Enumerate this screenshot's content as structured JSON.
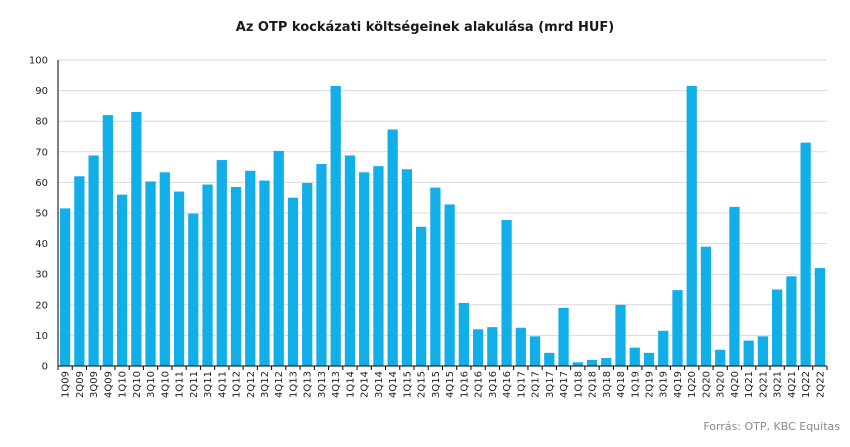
{
  "chart_data": {
    "type": "bar",
    "title": "Az OTP kockázati költségeinek alakulása (mrd HUF)",
    "xlabel": "",
    "ylabel": "",
    "ylim": [
      0,
      100
    ],
    "yticks": [
      0,
      10,
      20,
      30,
      40,
      50,
      60,
      70,
      80,
      90,
      100
    ],
    "grid": true,
    "color": "#12aee8",
    "categories": [
      "1Q09",
      "2Q09",
      "3Q09",
      "4Q09",
      "1Q10",
      "2Q10",
      "3Q10",
      "4Q10",
      "1Q11",
      "2Q11",
      "3Q11",
      "4Q11",
      "1Q12",
      "2Q12",
      "3Q12",
      "4Q12",
      "1Q13",
      "2Q13",
      "3Q13",
      "4Q13",
      "1Q14",
      "2Q14",
      "3Q14",
      "4Q14",
      "1Q15",
      "2Q15",
      "3Q15",
      "4Q15",
      "1Q16",
      "2Q16",
      "3Q16",
      "4Q16",
      "1Q17",
      "2Q17",
      "3Q17",
      "4Q17",
      "1Q18",
      "2Q18",
      "3Q18",
      "4Q18",
      "1Q19",
      "2Q19",
      "3Q19",
      "4Q19",
      "1Q20",
      "2Q20",
      "3Q20",
      "4Q20",
      "1Q21",
      "2Q21",
      "3Q21",
      "4Q21",
      "1Q22",
      "2Q22"
    ],
    "values": [
      51.5,
      62,
      68.8,
      82,
      56,
      83,
      60.3,
      63.3,
      57,
      49.8,
      59.3,
      67.3,
      58.5,
      63.8,
      60.6,
      70.3,
      55,
      59.8,
      66,
      91.5,
      68.8,
      63.3,
      65.3,
      77.3,
      64.3,
      45.5,
      58.3,
      52.8,
      20.6,
      12,
      12.7,
      47.7,
      12.5,
      9.7,
      4.3,
      19,
      1.2,
      2,
      2.6,
      20,
      6,
      4.3,
      11.5,
      24.8,
      91.5,
      39,
      5.3,
      52,
      8.3,
      9.7,
      25,
      29.3,
      73,
      32
    ]
  },
  "source": "Forrás: OTP, KBC Equitas"
}
